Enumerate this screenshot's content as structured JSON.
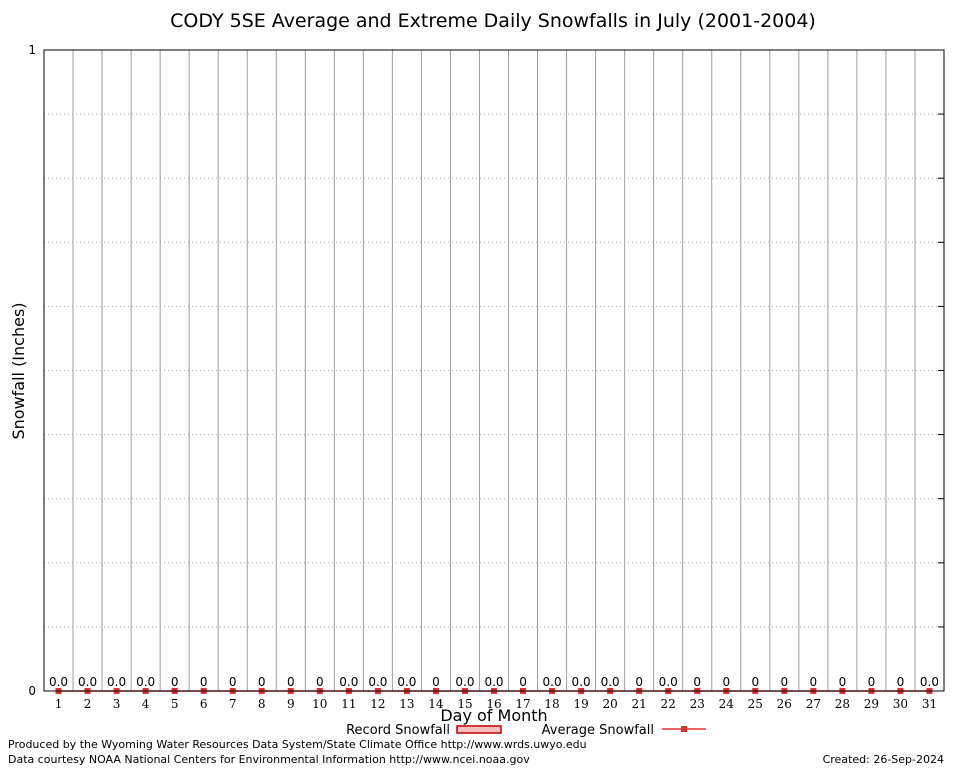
{
  "chart_data": {
    "type": "bar",
    "title": "CODY 5SE Average and Extreme Daily Snowfalls in July (2001-2004)",
    "xlabel": "Day of Month",
    "ylabel": "Snowfall (Inches)",
    "ylim": [
      0,
      1
    ],
    "yticks": [
      "0",
      "1"
    ],
    "grid": true,
    "legend_position": "bottom",
    "categories": [
      "1",
      "2",
      "3",
      "4",
      "5",
      "6",
      "7",
      "8",
      "9",
      "10",
      "11",
      "12",
      "13",
      "14",
      "15",
      "16",
      "17",
      "18",
      "19",
      "20",
      "21",
      "22",
      "23",
      "24",
      "25",
      "26",
      "27",
      "28",
      "29",
      "30",
      "31"
    ],
    "series": [
      {
        "name": "Record Snowfall",
        "type": "bar",
        "color": "#c00000",
        "values": [
          0,
          0,
          0,
          0,
          0,
          0,
          0,
          0,
          0,
          0,
          0,
          0,
          0,
          0,
          0,
          0,
          0,
          0,
          0,
          0,
          0,
          0,
          0,
          0,
          0,
          0,
          0,
          0,
          0,
          0,
          0
        ]
      },
      {
        "name": "Average Snowfall",
        "type": "line",
        "color": "#e03030",
        "values": [
          0,
          0,
          0,
          0,
          0,
          0,
          0,
          0,
          0,
          0,
          0,
          0,
          0,
          0,
          0,
          0,
          0,
          0,
          0,
          0,
          0,
          0,
          0,
          0,
          0,
          0,
          0,
          0,
          0,
          0,
          0
        ]
      }
    ],
    "data_labels": [
      "0.0",
      "0.0",
      "0.0",
      "0.0",
      "0",
      "0",
      "0",
      "0",
      "0",
      "0",
      "0.0",
      "0.0",
      "0.0",
      "0",
      "0.0",
      "0.0",
      "0",
      "0.0",
      "0.0",
      "0.0",
      "0",
      "0.0",
      "0",
      "0",
      "0",
      "0",
      "0",
      "0",
      "0",
      "0",
      "0.0"
    ]
  },
  "footer": {
    "produced_by": "Produced by the Wyoming Water Resources Data System/State Climate Office http://www.wrds.uwyo.edu",
    "courtesy": "Data courtesy NOAA National Centers for Environmental Information http://www.ncei.noaa.gov",
    "created": "Created: 26-Sep-2024"
  }
}
